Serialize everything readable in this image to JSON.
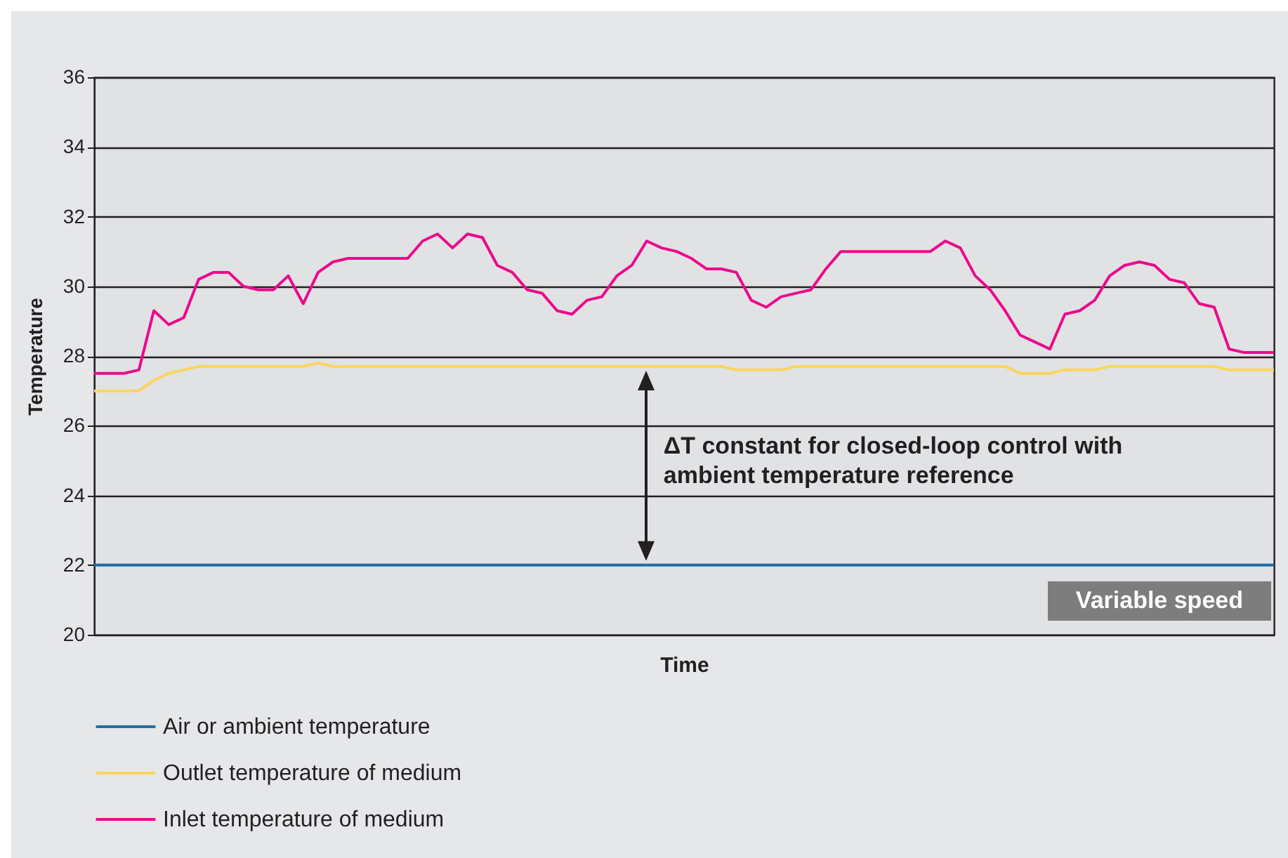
{
  "chart_data": {
    "type": "line",
    "xlabel": "Time",
    "ylabel": "Temperature",
    "categories": [
      null,
      null,
      null,
      null,
      null,
      null,
      null,
      null,
      null,
      null,
      null,
      null,
      null,
      null,
      null,
      null,
      null,
      null,
      null,
      null,
      null,
      null,
      null,
      null,
      null,
      null,
      null,
      null,
      null,
      null,
      null,
      null,
      null,
      null,
      null,
      null,
      null,
      null,
      null,
      null,
      null,
      null,
      null,
      null,
      null,
      null,
      null,
      null,
      null,
      null,
      null,
      null,
      null,
      null,
      null,
      null,
      null,
      null,
      null,
      null,
      null,
      null,
      null,
      null,
      null,
      null,
      null,
      null,
      null,
      null,
      null,
      null,
      null,
      null,
      null,
      null,
      null,
      null,
      null,
      null
    ],
    "series": [
      {
        "name": "Air or ambient temperature",
        "color": "#1f6fa6",
        "values": [
          22,
          22,
          22,
          22,
          22,
          22,
          22,
          22,
          22,
          22,
          22,
          22,
          22,
          22,
          22,
          22,
          22,
          22,
          22,
          22,
          22,
          22,
          22,
          22,
          22,
          22,
          22,
          22,
          22,
          22,
          22,
          22,
          22,
          22,
          22,
          22,
          22,
          22,
          22,
          22,
          22,
          22,
          22,
          22,
          22,
          22,
          22,
          22,
          22,
          22,
          22,
          22,
          22,
          22,
          22,
          22,
          22,
          22,
          22,
          22,
          22,
          22,
          22,
          22,
          22,
          22,
          22,
          22,
          22,
          22,
          22,
          22,
          22,
          22,
          22,
          22,
          22,
          22,
          22,
          22
        ]
      },
      {
        "name": "Outlet temperature of medium",
        "color": "#fdd45c",
        "values": [
          27.0,
          27.0,
          27.0,
          27.0,
          27.3,
          27.5,
          27.6,
          27.7,
          27.7,
          27.7,
          27.7,
          27.7,
          27.7,
          27.7,
          27.7,
          27.8,
          27.7,
          27.7,
          27.7,
          27.7,
          27.7,
          27.7,
          27.7,
          27.7,
          27.7,
          27.7,
          27.7,
          27.7,
          27.7,
          27.7,
          27.7,
          27.7,
          27.7,
          27.7,
          27.7,
          27.7,
          27.7,
          27.7,
          27.7,
          27.7,
          27.7,
          27.7,
          27.7,
          27.6,
          27.6,
          27.6,
          27.6,
          27.7,
          27.7,
          27.7,
          27.7,
          27.7,
          27.7,
          27.7,
          27.7,
          27.7,
          27.7,
          27.7,
          27.7,
          27.7,
          27.7,
          27.7,
          27.5,
          27.5,
          27.5,
          27.6,
          27.6,
          27.6,
          27.7,
          27.7,
          27.7,
          27.7,
          27.7,
          27.7,
          27.7,
          27.7,
          27.6,
          27.6,
          27.6,
          27.6
        ]
      },
      {
        "name": "Inlet temperature of medium",
        "color": "#ec0a8c",
        "values": [
          27.5,
          27.5,
          27.5,
          27.6,
          29.3,
          28.9,
          29.1,
          30.2,
          30.4,
          30.4,
          30.0,
          29.9,
          29.9,
          30.3,
          29.5,
          30.4,
          30.7,
          30.8,
          30.8,
          30.8,
          30.8,
          30.8,
          31.3,
          31.5,
          31.1,
          31.5,
          31.4,
          30.6,
          30.4,
          29.9,
          29.8,
          29.3,
          29.2,
          29.6,
          29.7,
          30.3,
          30.6,
          31.3,
          31.1,
          31.0,
          30.8,
          30.5,
          30.5,
          30.4,
          29.6,
          29.4,
          29.7,
          29.8,
          29.9,
          30.5,
          31.0,
          31.0,
          31.0,
          31.0,
          31.0,
          31.0,
          31.0,
          31.3,
          31.1,
          30.3,
          29.9,
          29.3,
          28.6,
          28.4,
          28.2,
          29.2,
          29.3,
          29.6,
          30.3,
          30.6,
          30.7,
          30.6,
          30.2,
          30.1,
          29.5,
          29.4,
          28.2,
          28.1,
          28.1,
          28.1
        ]
      }
    ],
    "ylim": [
      20,
      36
    ],
    "yticks": [
      20,
      22,
      24,
      26,
      28,
      30,
      32,
      34,
      36
    ],
    "grid": "y",
    "tick_labels": "y",
    "legend": "bottom",
    "annotations": [
      "ΔT constant for closed-loop control with ambient temperature reference",
      "Variable speed"
    ]
  }
}
